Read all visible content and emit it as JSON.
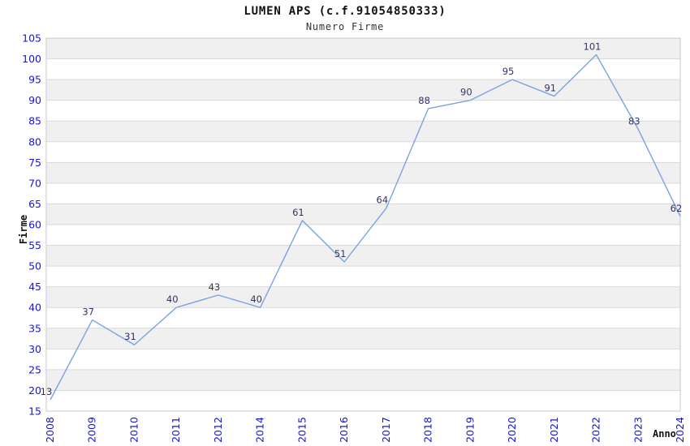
{
  "title": "LUMEN APS (c.f.91054850333)",
  "subtitle": "Numero Firme",
  "chart_data": {
    "type": "line",
    "title": "LUMEN APS (c.f.91054850333)",
    "subtitle": "Numero Firme",
    "xlabel": "Anno",
    "ylabel": "Firme",
    "categories": [
      "2008",
      "2009",
      "2010",
      "2011",
      "2012",
      "2014",
      "2015",
      "2016",
      "2017",
      "2018",
      "2019",
      "2020",
      "2021",
      "2022",
      "2023",
      "2024"
    ],
    "values": [
      13,
      37,
      31,
      40,
      43,
      40,
      61,
      51,
      64,
      88,
      90,
      95,
      91,
      101,
      83,
      62
    ],
    "ylim": [
      15,
      105
    ],
    "ytick_step": 5,
    "grid": true,
    "banded_background": true,
    "legend_position": "none",
    "point_labels_visible": true,
    "colors": {
      "line": "#79a3e1",
      "tick_label": "#1717cf",
      "data_label": "#333366",
      "band": "#f0f0f0",
      "gridline": "#d9d9d9",
      "plot_border": "#c9c9c9",
      "title": "#111111",
      "background": "#ffffff"
    }
  }
}
